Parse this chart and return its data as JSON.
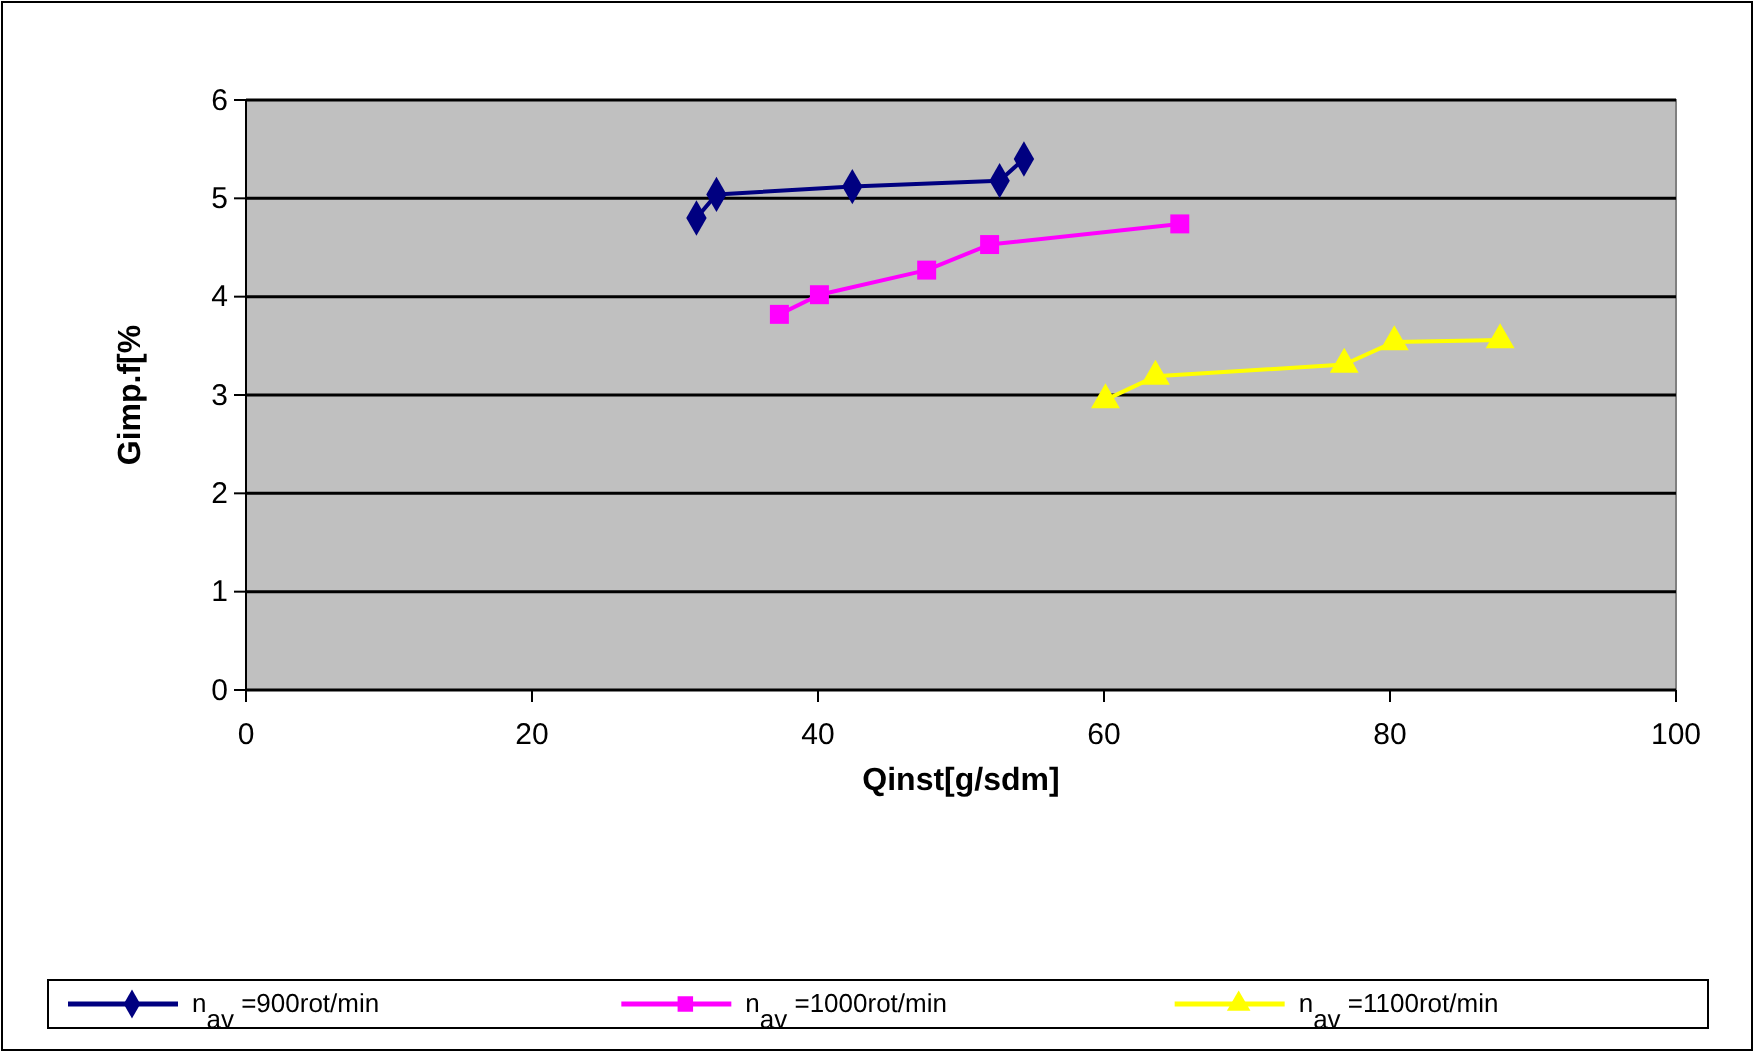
{
  "chart_data": {
    "type": "line",
    "xlabel": "Qinst[g/sdm]",
    "ylabel": "Gimp.f[%",
    "xlim": [
      0,
      100
    ],
    "xticks": [
      0,
      20,
      40,
      60,
      80,
      100
    ],
    "ylim": [
      0,
      6
    ],
    "yticks": [
      0,
      1,
      2,
      3,
      4,
      5,
      6
    ],
    "grid": "y",
    "legend": "bottom",
    "series": [
      {
        "name": "n$_{av}$ =900rot/min",
        "color": "#000080",
        "marker": "diamond",
        "x": [
          31.5,
          32.9,
          42.4,
          52.7,
          54.4
        ],
        "values": [
          4.8,
          5.04,
          5.12,
          5.18,
          5.4
        ]
      },
      {
        "name": "n$_{av}$ =1000rot/min",
        "color": "#ff00ff",
        "marker": "square",
        "x": [
          37.3,
          40.1,
          47.6,
          52.0,
          65.3
        ],
        "values": [
          3.82,
          4.02,
          4.27,
          4.53,
          4.74
        ]
      },
      {
        "name": "n$_{av}$ =1100rot/min",
        "color": "#ffff00",
        "marker": "triangle",
        "x": [
          60.1,
          63.6,
          76.8,
          80.3,
          87.7
        ],
        "values": [
          2.95,
          3.19,
          3.31,
          3.54,
          3.56
        ]
      }
    ]
  }
}
